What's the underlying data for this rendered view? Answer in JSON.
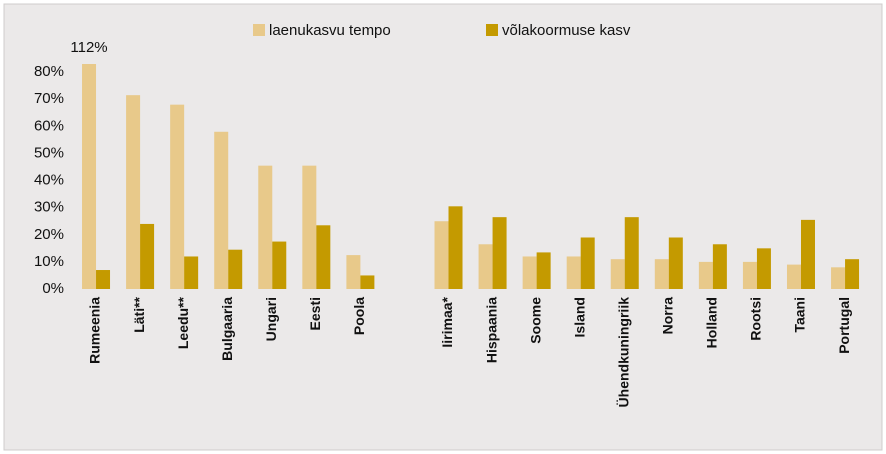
{
  "chart_data": {
    "type": "bar",
    "categories": [
      "Rumeenia",
      "Läti**",
      "Leedu**",
      "Bulgaaria",
      "Ungari",
      "Eesti",
      "Poola",
      null,
      "Iirimaa*",
      "Hispaania",
      "Soome",
      "Island",
      "Ühendkuningriik",
      "Norra",
      "Holland",
      "Rootsi",
      "Taani",
      "Portugal"
    ],
    "series": [
      {
        "name": "laenukasvu tempo",
        "color": "#e8c98a",
        "values": [
          112,
          71.5,
          68,
          58,
          45.5,
          45.5,
          12.5,
          null,
          25,
          16.5,
          12,
          12,
          11,
          11,
          10,
          10,
          9,
          8
        ],
        "value_labels": [
          "112%",
          null,
          null,
          null,
          null,
          null,
          null,
          null,
          null,
          null,
          null,
          null,
          null,
          null,
          null,
          null,
          null,
          null
        ]
      },
      {
        "name": "võlakoormuse kasv",
        "color": "#c49a00",
        "values": [
          7,
          24,
          12,
          14.5,
          17.5,
          23.5,
          5,
          null,
          30.5,
          26.5,
          13.5,
          19,
          26.5,
          19,
          16.5,
          15,
          25.5,
          11
        ]
      }
    ],
    "ylim": [
      0,
      83
    ],
    "yticks": [
      {
        "value": 0,
        "label": "0%"
      },
      {
        "value": 10,
        "label": "10%"
      },
      {
        "value": 20,
        "label": "20%"
      },
      {
        "value": 30,
        "label": "30%"
      },
      {
        "value": 40,
        "label": "40%"
      },
      {
        "value": 50,
        "label": "50%"
      },
      {
        "value": 60,
        "label": "60%"
      },
      {
        "value": 70,
        "label": "70%"
      },
      {
        "value": 80,
        "label": "80%"
      }
    ],
    "grid": false
  }
}
